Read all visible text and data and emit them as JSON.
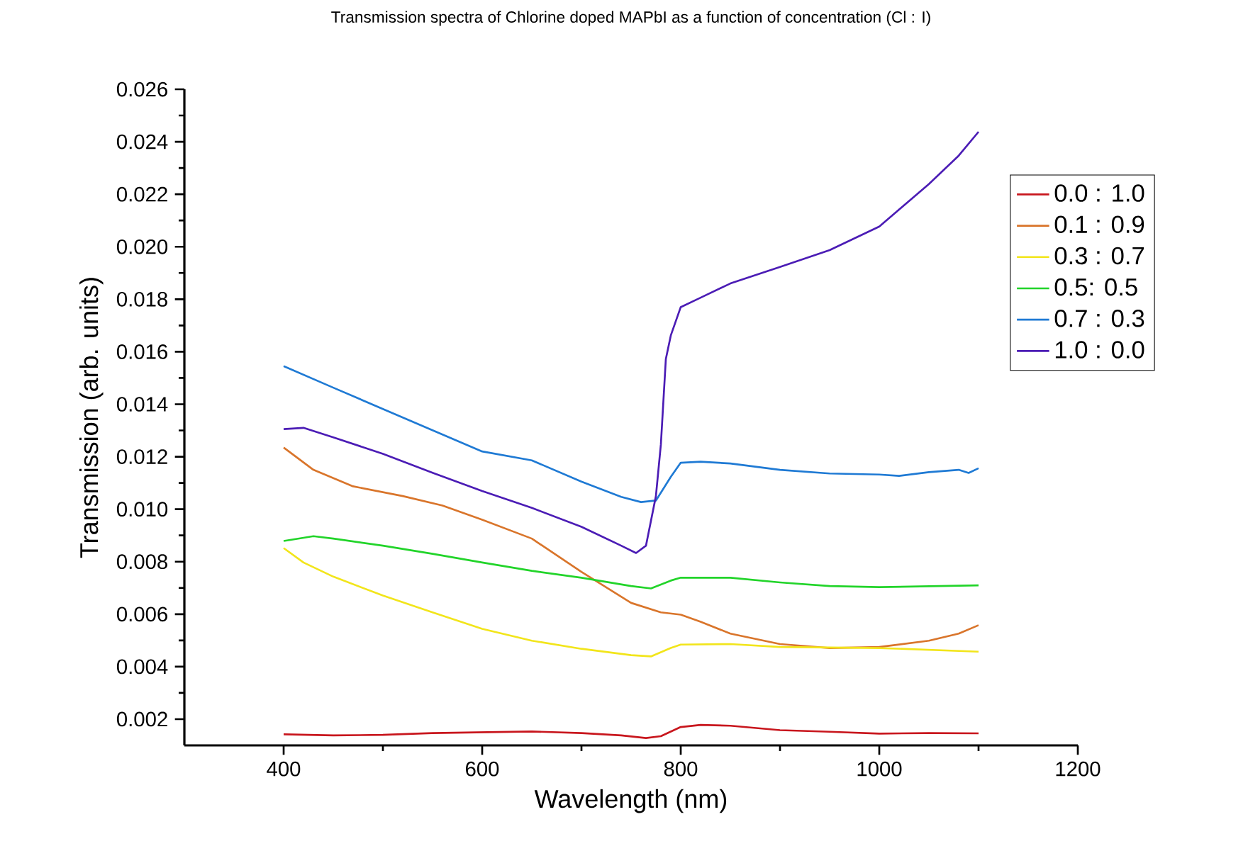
{
  "chart_data": {
    "type": "line",
    "title": "Transmission spectra of Chlorine doped MAPbI as a function of concentration (Cl : I)",
    "xlabel": "Wavelength (nm)",
    "ylabel": "Transmission (arb. units)",
    "xlim": [
      300,
      1200
    ],
    "xticks": [
      400,
      600,
      800,
      1000,
      1200
    ],
    "ylim": [
      0.001,
      0.026
    ],
    "yticks": [
      {
        "value": 0.002,
        "label": "0.002"
      },
      {
        "value": 0.004,
        "label": "0.004"
      },
      {
        "value": 0.006,
        "label": "0.006"
      },
      {
        "value": 0.008,
        "label": "0.008"
      },
      {
        "value": 0.01,
        "label": "0.010"
      },
      {
        "value": 0.012,
        "label": "0.012"
      },
      {
        "value": 0.014,
        "label": "0.014"
      },
      {
        "value": 0.016,
        "label": "0.016"
      },
      {
        "value": 0.018,
        "label": "0.018"
      },
      {
        "value": 0.02,
        "label": "0.020"
      },
      {
        "value": 0.022,
        "label": "0.022"
      },
      {
        "value": 0.024,
        "label": "0.024"
      },
      {
        "value": 0.026,
        "label": "0.026"
      }
    ],
    "grid": false,
    "legend": "right",
    "marker": "none",
    "line_style": "solid",
    "series": [
      {
        "name": "0.0 : 1.0",
        "color": "#c8161d",
        "x": [
          400,
          450,
          500,
          550,
          600,
          650,
          700,
          740,
          765,
          780,
          800,
          820,
          850,
          900,
          950,
          1000,
          1050,
          1100
        ],
        "values": [
          0.00142,
          0.00138,
          0.0014,
          0.00147,
          0.0015,
          0.00153,
          0.00147,
          0.00138,
          0.00128,
          0.00135,
          0.0017,
          0.00178,
          0.00175,
          0.00158,
          0.00152,
          0.00145,
          0.00147,
          0.00146
        ]
      },
      {
        "name": "0.1 : 0.9",
        "color": "#d9752b",
        "x": [
          400,
          430,
          470,
          520,
          560,
          600,
          650,
          700,
          750,
          780,
          800,
          820,
          850,
          900,
          950,
          1000,
          1050,
          1080,
          1100
        ],
        "values": [
          0.01235,
          0.0115,
          0.01087,
          0.0105,
          0.01014,
          0.0096,
          0.00888,
          0.00761,
          0.00643,
          0.00607,
          0.00598,
          0.00571,
          0.00526,
          0.00486,
          0.00471,
          0.00475,
          0.00499,
          0.00526,
          0.00558
        ]
      },
      {
        "name": "0.3 : 0.7",
        "color": "#f2e51b",
        "x": [
          400,
          420,
          450,
          500,
          550,
          600,
          650,
          700,
          750,
          770,
          790,
          800,
          850,
          900,
          1000,
          1100
        ],
        "values": [
          0.00852,
          0.00797,
          0.00743,
          0.00671,
          0.00607,
          0.00544,
          0.00499,
          0.00468,
          0.00444,
          0.00439,
          0.00471,
          0.00484,
          0.00486,
          0.00475,
          0.00471,
          0.00457
        ]
      },
      {
        "name": "0.5: 0.5",
        "color": "#22d42a",
        "x": [
          400,
          430,
          450,
          500,
          550,
          600,
          650,
          700,
          750,
          770,
          790,
          800,
          850,
          900,
          950,
          1000,
          1100
        ],
        "values": [
          0.00879,
          0.00897,
          0.00888,
          0.00861,
          0.0083,
          0.00797,
          0.00765,
          0.00739,
          0.00707,
          0.00698,
          0.00728,
          0.00739,
          0.00739,
          0.00721,
          0.00707,
          0.00703,
          0.0071
        ]
      },
      {
        "name": "0.7 : 0.3",
        "color": "#1f7ad4",
        "x": [
          400,
          450,
          500,
          550,
          600,
          650,
          700,
          740,
          760,
          775,
          790,
          800,
          820,
          850,
          900,
          950,
          1000,
          1020,
          1050,
          1080,
          1090,
          1100
        ],
        "values": [
          0.01545,
          0.01463,
          0.01382,
          0.01301,
          0.0122,
          0.01186,
          0.01105,
          0.01047,
          0.01027,
          0.01033,
          0.01123,
          0.01177,
          0.01181,
          0.01174,
          0.0115,
          0.01136,
          0.01132,
          0.01127,
          0.01141,
          0.0115,
          0.01138,
          0.01156
        ]
      },
      {
        "name": "1.0 : 0.0",
        "color": "#4b1cb5",
        "x": [
          400,
          420,
          450,
          500,
          550,
          600,
          650,
          700,
          740,
          755,
          765,
          775,
          780,
          785,
          790,
          800,
          820,
          850,
          900,
          950,
          1000,
          1050,
          1080,
          1100
        ],
        "values": [
          0.01305,
          0.0131,
          0.01274,
          0.01211,
          0.01139,
          0.01069,
          0.01005,
          0.00933,
          0.00861,
          0.00833,
          0.00861,
          0.0105,
          0.01247,
          0.01572,
          0.01662,
          0.0177,
          0.01806,
          0.0186,
          0.01923,
          0.01987,
          0.02077,
          0.02239,
          0.02347,
          0.02438
        ]
      }
    ]
  }
}
